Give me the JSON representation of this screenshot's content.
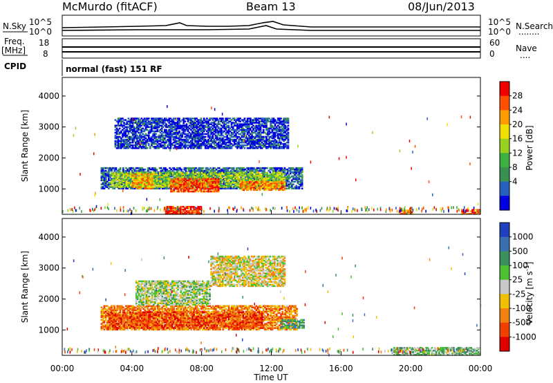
{
  "header": {
    "station": "McMurdo (fitACF)",
    "beam": "Beam 13",
    "date": "08/Jun/2013"
  },
  "panels": {
    "noise_left_label": "N.Sky",
    "noise_right_label": "N.Search",
    "noise_right_dots": "........",
    "noise_ticks_left": [
      "10^5",
      "10^0"
    ],
    "noise_ticks_right": [
      "10^5",
      "10^0"
    ],
    "freq_label_top": "Freq.",
    "freq_label_unit": "[MHz]",
    "freq_ticks": [
      "18",
      "8"
    ],
    "nave_label": "Nave",
    "nave_dots": "....",
    "nave_ticks": [
      "60",
      "0"
    ],
    "cpid_label": "CPID",
    "cpid_text": "normal (fast) 151 RF"
  },
  "chart_data": [
    {
      "type": "heatmap",
      "name": "power",
      "xlabel": "Time UT",
      "ylabel": "Slant Range [km]",
      "x_range_hours": [
        0,
        24
      ],
      "y_range_km": [
        180,
        4600
      ],
      "y_ticks": [
        1000,
        2000,
        3000,
        4000
      ],
      "colorbar_label": "Power [dB]",
      "colorbar_ticks": [
        "28",
        "24",
        "20",
        "16",
        "12",
        "8",
        "4"
      ],
      "colorbar_colors": [
        "#f00000",
        "#ff5000",
        "#ff9a00",
        "#f0e000",
        "#98d020",
        "#3cb040",
        "#3a9050",
        "#2860c0",
        "#0000e0"
      ],
      "blobs": [
        {
          "t0": 2.2,
          "t1": 13.8,
          "r0": 1000,
          "r1": 1700,
          "level": 0.18
        },
        {
          "t0": 2.8,
          "t1": 12.8,
          "r0": 1050,
          "r1": 1550,
          "level": 0.5
        },
        {
          "t0": 6.2,
          "t1": 9.0,
          "r0": 900,
          "r1": 1350,
          "level": 0.85
        },
        {
          "t0": 10.2,
          "t1": 12.8,
          "r0": 950,
          "r1": 1250,
          "level": 0.75
        },
        {
          "t0": 4.0,
          "t1": 5.2,
          "r0": 1000,
          "r1": 1500,
          "level": 0.7
        },
        {
          "t0": 5.9,
          "t1": 8.0,
          "r0": 180,
          "r1": 450,
          "level": 0.92
        },
        {
          "t0": 3.0,
          "t1": 13.0,
          "r0": 2300,
          "r1": 3300,
          "level": 0.1
        },
        {
          "t0": 22.9,
          "t1": 24.0,
          "r0": 180,
          "r1": 350,
          "level": 0.9
        },
        {
          "t0": 19.3,
          "t1": 20.1,
          "r0": 180,
          "r1": 330,
          "level": 0.75
        }
      ]
    },
    {
      "type": "heatmap",
      "name": "velocity",
      "xlabel": "Time UT",
      "ylabel": "Slant Range [km]",
      "x_range_hours": [
        0,
        24
      ],
      "y_range_km": [
        180,
        4600
      ],
      "y_ticks": [
        1000,
        2000,
        3000,
        4000
      ],
      "x_ticks": [
        "00:00",
        "04:00",
        "08:00",
        "12:00",
        "16:00",
        "20:00",
        "00:00"
      ],
      "colorbar_label": "Velocity [m s",
      "colorbar_label_sup": "-1",
      "colorbar_label_end": "]",
      "colorbar_ticks": [
        "1000",
        "500",
        "100",
        "25",
        "-25",
        "-100",
        "-500",
        "-1000"
      ],
      "colorbar_colors": [
        "#2040c0",
        "#3a70b0",
        "#3c9060",
        "#4cc030",
        "#c8c8c8",
        "#f0c000",
        "#f08010",
        "#f04000",
        "#e00000"
      ],
      "blobs": [
        {
          "t0": 2.2,
          "t1": 13.5,
          "r0": 1000,
          "r1": 1800,
          "level": 0.28
        },
        {
          "t0": 2.6,
          "t1": 11.5,
          "r0": 1050,
          "r1": 1600,
          "level": 0.18
        },
        {
          "t0": 4.2,
          "t1": 8.5,
          "r0": 1800,
          "r1": 2600,
          "level": 0.55
        },
        {
          "t0": 12.5,
          "t1": 13.9,
          "r0": 1050,
          "r1": 1350,
          "level": 0.7
        },
        {
          "t0": 8.5,
          "t1": 12.8,
          "r0": 2400,
          "r1": 3400,
          "level": 0.45
        },
        {
          "t0": 19.0,
          "t1": 24.0,
          "r0": 180,
          "r1": 450,
          "level": 0.6
        }
      ]
    }
  ]
}
